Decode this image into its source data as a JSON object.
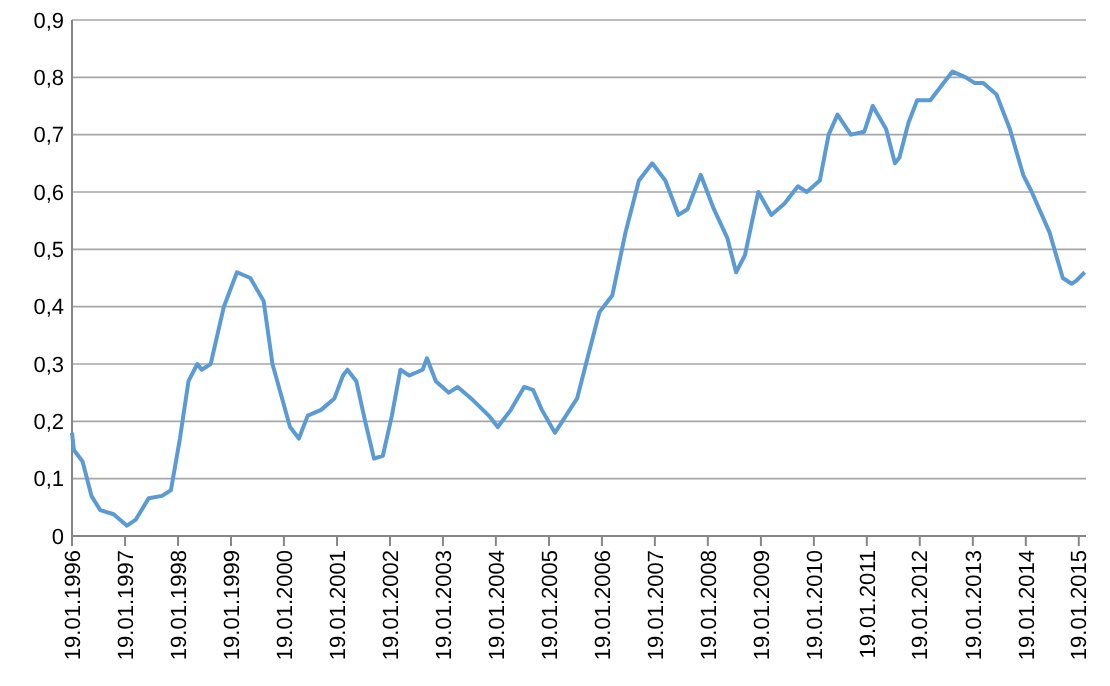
{
  "chart_data": {
    "type": "line",
    "x": [
      "1996-01-19",
      "1996-02",
      "1996-04",
      "1996-06",
      "1996-08",
      "1996-11",
      "1997-02",
      "1997-04",
      "1997-07",
      "1997-10",
      "1997-12",
      "1998-02",
      "1998-04",
      "1998-06",
      "1998-07",
      "1998-09",
      "1998-12",
      "1999-03",
      "1999-06",
      "1999-09",
      "1999-11",
      "2000-03",
      "2000-05",
      "2000-07",
      "2000-10",
      "2001-01",
      "2001-03",
      "2001-04",
      "2001-06",
      "2001-08",
      "2001-10",
      "2001-12",
      "2002-02",
      "2002-04",
      "2002-06",
      "2002-09",
      "2002-10",
      "2002-12",
      "2003-03",
      "2003-05",
      "2003-08",
      "2003-12",
      "2004-02",
      "2004-05",
      "2004-08",
      "2004-10",
      "2004-12",
      "2005-03",
      "2005-08",
      "2005-10",
      "2006-01",
      "2006-04",
      "2006-07",
      "2006-10",
      "2007-01",
      "2007-04",
      "2007-07",
      "2007-09",
      "2007-12",
      "2008-03",
      "2008-06",
      "2008-08",
      "2008-10",
      "2009-01",
      "2009-04",
      "2009-07",
      "2009-10",
      "2009-12",
      "2010-03",
      "2010-05",
      "2010-07",
      "2010-10",
      "2011-01",
      "2011-03",
      "2011-06",
      "2011-08",
      "2011-09",
      "2011-11",
      "2012-01",
      "2012-04",
      "2012-07",
      "2012-09",
      "2012-12",
      "2013-02",
      "2013-04",
      "2013-07",
      "2013-10",
      "2014-01",
      "2014-03",
      "2014-07",
      "2014-10",
      "2014-12",
      "2015-01",
      "2015-03"
    ],
    "series": [
      {
        "color": "#5b9bd5",
        "values": [
          0.18,
          0.15,
          0.13,
          0.07,
          0.045,
          0.038,
          0.018,
          0.028,
          0.066,
          0.07,
          0.08,
          0.17,
          0.27,
          0.3,
          0.29,
          0.3,
          0.4,
          0.46,
          0.45,
          0.41,
          0.3,
          0.19,
          0.17,
          0.21,
          0.22,
          0.24,
          0.28,
          0.29,
          0.27,
          0.2,
          0.135,
          0.14,
          0.21,
          0.29,
          0.28,
          0.29,
          0.31,
          0.27,
          0.25,
          0.26,
          0.24,
          0.21,
          0.19,
          0.22,
          0.26,
          0.255,
          0.22,
          0.18,
          0.24,
          0.3,
          0.39,
          0.42,
          0.53,
          0.62,
          0.65,
          0.62,
          0.56,
          0.57,
          0.63,
          0.57,
          0.52,
          0.46,
          0.49,
          0.6,
          0.56,
          0.58,
          0.61,
          0.6,
          0.62,
          0.7,
          0.735,
          0.7,
          0.705,
          0.75,
          0.71,
          0.65,
          0.66,
          0.72,
          0.76,
          0.76,
          0.79,
          0.81,
          0.8,
          0.79,
          0.79,
          0.77,
          0.71,
          0.63,
          0.6,
          0.53,
          0.45,
          0.44,
          0.445,
          0.46
        ]
      }
    ],
    "xlim": [
      "1996-01-19",
      "2015-03-10"
    ],
    "xticks": [
      {
        "value": "1996-01-19",
        "label": "19.01.1996"
      },
      {
        "value": "1997-01-19",
        "label": "19.01.1997"
      },
      {
        "value": "1998-01-19",
        "label": "19.01.1998"
      },
      {
        "value": "1999-01-19",
        "label": "19.01.1999"
      },
      {
        "value": "2000-01-19",
        "label": "19.01.2000"
      },
      {
        "value": "2001-01-19",
        "label": "19.01.2001"
      },
      {
        "value": "2002-01-19",
        "label": "19.01.2002"
      },
      {
        "value": "2003-01-19",
        "label": "19.01.2003"
      },
      {
        "value": "2004-01-19",
        "label": "19.01.2004"
      },
      {
        "value": "2005-01-19",
        "label": "19.01.2005"
      },
      {
        "value": "2006-01-19",
        "label": "19.01.2006"
      },
      {
        "value": "2007-01-19",
        "label": "19.01.2007"
      },
      {
        "value": "2008-01-19",
        "label": "19.01.2008"
      },
      {
        "value": "2009-01-19",
        "label": "19.01.2009"
      },
      {
        "value": "2010-01-19",
        "label": "19.01.2010"
      },
      {
        "value": "2011-01-19",
        "label": "19.01.2011"
      },
      {
        "value": "2012-01-19",
        "label": "19.01.2012"
      },
      {
        "value": "2013-01-19",
        "label": "19.01.2013"
      },
      {
        "value": "2014-01-19",
        "label": "19.01.2014"
      },
      {
        "value": "2015-01-19",
        "label": "19.01.2015"
      }
    ],
    "ylim": [
      0,
      0.9
    ],
    "yticks": [
      0,
      {
        "value": 0.1,
        "label": "0,1"
      },
      {
        "value": 0.2,
        "label": "0,2"
      },
      {
        "value": 0.3,
        "label": "0,3"
      },
      {
        "value": 0.4,
        "label": "0,4"
      },
      {
        "value": 0.5,
        "label": "0,5"
      },
      {
        "value": 0.6,
        "label": "0,6"
      },
      {
        "value": 0.7,
        "label": "0,7"
      },
      {
        "value": 0.8,
        "label": "0,8"
      },
      {
        "value": 0.9,
        "label": "0,9"
      }
    ],
    "grid": "y",
    "marker": "none",
    "line_style": "solid"
  }
}
